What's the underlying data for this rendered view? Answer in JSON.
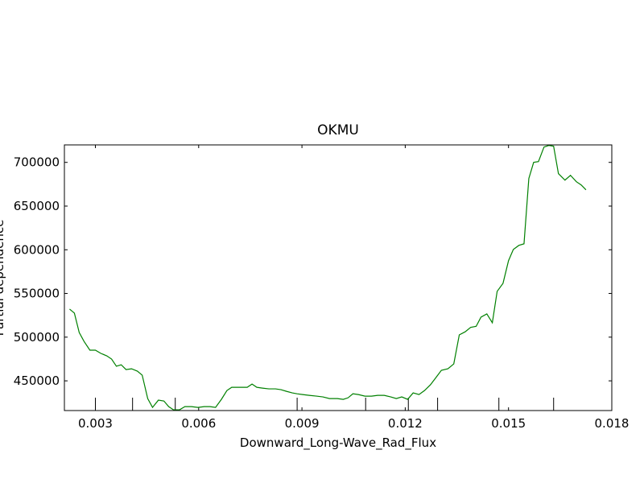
{
  "chart_data": {
    "type": "line",
    "title": "OKMU",
    "x_label": "Downward_Long-Wave_Rad_Flux",
    "y_label": "Partial dependence",
    "xlim": [
      0.0021,
      0.018
    ],
    "ylim": [
      416000,
      720000
    ],
    "xticks": [
      0.003,
      0.006,
      0.009,
      0.012,
      0.015,
      0.018
    ],
    "yticks": [
      450000,
      500000,
      550000,
      600000,
      650000,
      700000
    ],
    "deciles": [
      0.003,
      0.00408,
      0.00532,
      0.00886,
      0.01085,
      0.01209,
      0.01294,
      0.01472,
      0.01631
    ],
    "series": [
      {
        "color": "#008000",
        "x": [
          0.00225,
          0.00239,
          0.00253,
          0.00267,
          0.00284,
          0.003,
          0.00316,
          0.00333,
          0.00347,
          0.00361,
          0.00375,
          0.00389,
          0.00405,
          0.00422,
          0.00436,
          0.00452,
          0.00466,
          0.00483,
          0.00499,
          0.00513,
          0.00527,
          0.00544,
          0.0056,
          0.00579,
          0.00598,
          0.00616,
          0.00633,
          0.00649,
          0.00666,
          0.00682,
          0.00696,
          0.00712,
          0.00727,
          0.00741,
          0.00755,
          0.00769,
          0.00785,
          0.00804,
          0.00823,
          0.00839,
          0.00855,
          0.00872,
          0.00886,
          0.00902,
          0.00921,
          0.00942,
          0.00961,
          0.0098,
          0.01003,
          0.0102,
          0.01034,
          0.01048,
          0.01064,
          0.01083,
          0.01102,
          0.0112,
          0.01139,
          0.01158,
          0.01174,
          0.0119,
          0.01207,
          0.01223,
          0.0124,
          0.01256,
          0.01273,
          0.01289,
          0.01305,
          0.01324,
          0.01341,
          0.01357,
          0.01374,
          0.0139,
          0.01406,
          0.0142,
          0.01437,
          0.01453,
          0.01467,
          0.01484,
          0.015,
          0.01514,
          0.0153,
          0.01545,
          0.01559,
          0.01573,
          0.01587,
          0.01603,
          0.01617,
          0.01631,
          0.01645,
          0.01664,
          0.0168,
          0.01697,
          0.01711,
          0.01725
        ],
        "values": [
          532100,
          527500,
          505300,
          495200,
          485100,
          485100,
          481400,
          478600,
          474900,
          466700,
          468400,
          462900,
          463800,
          461100,
          456500,
          429700,
          419600,
          427900,
          426900,
          420500,
          416800,
          416800,
          420500,
          420500,
          419600,
          420500,
          420500,
          419600,
          428800,
          438900,
          442600,
          442600,
          442600,
          442600,
          446300,
          442600,
          441700,
          440800,
          440800,
          439900,
          438000,
          436200,
          435200,
          434300,
          433400,
          432500,
          431600,
          429700,
          429700,
          428800,
          430600,
          435200,
          434300,
          432500,
          432500,
          433400,
          433400,
          431600,
          429700,
          431600,
          428800,
          436200,
          434300,
          438900,
          445400,
          453700,
          462000,
          463800,
          469400,
          502600,
          506100,
          511200,
          512400,
          522900,
          526600,
          516500,
          552400,
          561600,
          587500,
          600400,
          605000,
          606800,
          681600,
          700000,
          700900,
          717500,
          719400,
          718500,
          687100,
          679700,
          685200,
          677900,
          674200,
          668600
        ]
      }
    ]
  }
}
